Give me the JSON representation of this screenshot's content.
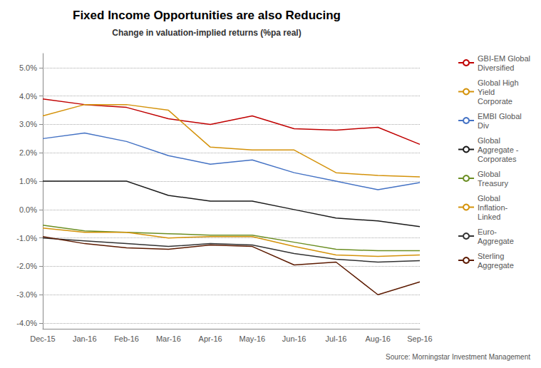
{
  "chart_data": {
    "type": "line",
    "title": "Fixed Income Opportunities are also Reducing",
    "subtitle": "Change in valuation-implied returns (%pa real)",
    "source": "Source: Morningstar Investment Management",
    "categories": [
      "Dec-15",
      "Jan-16",
      "Feb-16",
      "Mar-16",
      "Apr-16",
      "May-16",
      "Jun-16",
      "Jul-16",
      "Aug-16",
      "Sep-16"
    ],
    "series": [
      {
        "name": "GBI-EM Global\nDiversified",
        "color": "#c00000",
        "values": [
          3.9,
          3.7,
          3.6,
          3.2,
          3.0,
          3.3,
          2.85,
          2.8,
          2.9,
          2.3
        ]
      },
      {
        "name": "Global High\nYield\nCorporate",
        "color": "#d4920a",
        "values": [
          3.3,
          3.7,
          3.7,
          3.5,
          2.2,
          2.1,
          2.1,
          1.3,
          1.2,
          1.15
        ]
      },
      {
        "name": "EMBI Global\nDiv",
        "color": "#4472c4",
        "values": [
          2.5,
          2.7,
          2.4,
          1.9,
          1.6,
          1.75,
          1.3,
          1.0,
          0.7,
          0.95
        ]
      },
      {
        "name": "Global\nAggregate -\nCorporates",
        "color": "#1a1a1a",
        "values": [
          1.0,
          1.0,
          1.0,
          0.5,
          0.3,
          0.3,
          0.0,
          -0.3,
          -0.4,
          -0.6
        ]
      },
      {
        "name": "Global\nTreasury",
        "color": "#6b8e23",
        "values": [
          -0.55,
          -0.75,
          -0.8,
          -0.85,
          -0.9,
          -0.9,
          -1.15,
          -1.4,
          -1.45,
          -1.45
        ]
      },
      {
        "name": "Global\nInflation-\nLinked",
        "color": "#d4920a",
        "values": [
          -0.65,
          -0.8,
          -0.8,
          -1.0,
          -0.95,
          -0.95,
          -1.3,
          -1.6,
          -1.65,
          -1.6
        ]
      },
      {
        "name": "Euro-\nAggregate",
        "color": "#333333",
        "values": [
          -1.0,
          -1.1,
          -1.2,
          -1.3,
          -1.2,
          -1.25,
          -1.55,
          -1.75,
          -1.85,
          -1.8
        ]
      },
      {
        "name": "Sterling\nAggregate",
        "color": "#5c1a00",
        "values": [
          -0.95,
          -1.2,
          -1.35,
          -1.4,
          -1.25,
          -1.3,
          -1.95,
          -1.85,
          -3.0,
          -2.55
        ]
      }
    ],
    "ylim": [
      -4.2,
      5.5
    ],
    "yticks": [
      {
        "value": 5.0,
        "label": "5.0%"
      },
      {
        "value": 4.0,
        "label": "4.0%"
      },
      {
        "value": 3.0,
        "label": "3.0%"
      },
      {
        "value": 2.0,
        "label": "2.0%"
      },
      {
        "value": 1.0,
        "label": "1.0%"
      },
      {
        "value": 0.0,
        "label": "0.0%"
      },
      {
        "value": -1.0,
        "label": "-1.0%"
      },
      {
        "value": -2.0,
        "label": "-2.0%"
      },
      {
        "value": -3.0,
        "label": "-3.0%"
      },
      {
        "value": -4.0,
        "label": "-4.0%"
      }
    ],
    "grid": true,
    "legend": "right"
  }
}
